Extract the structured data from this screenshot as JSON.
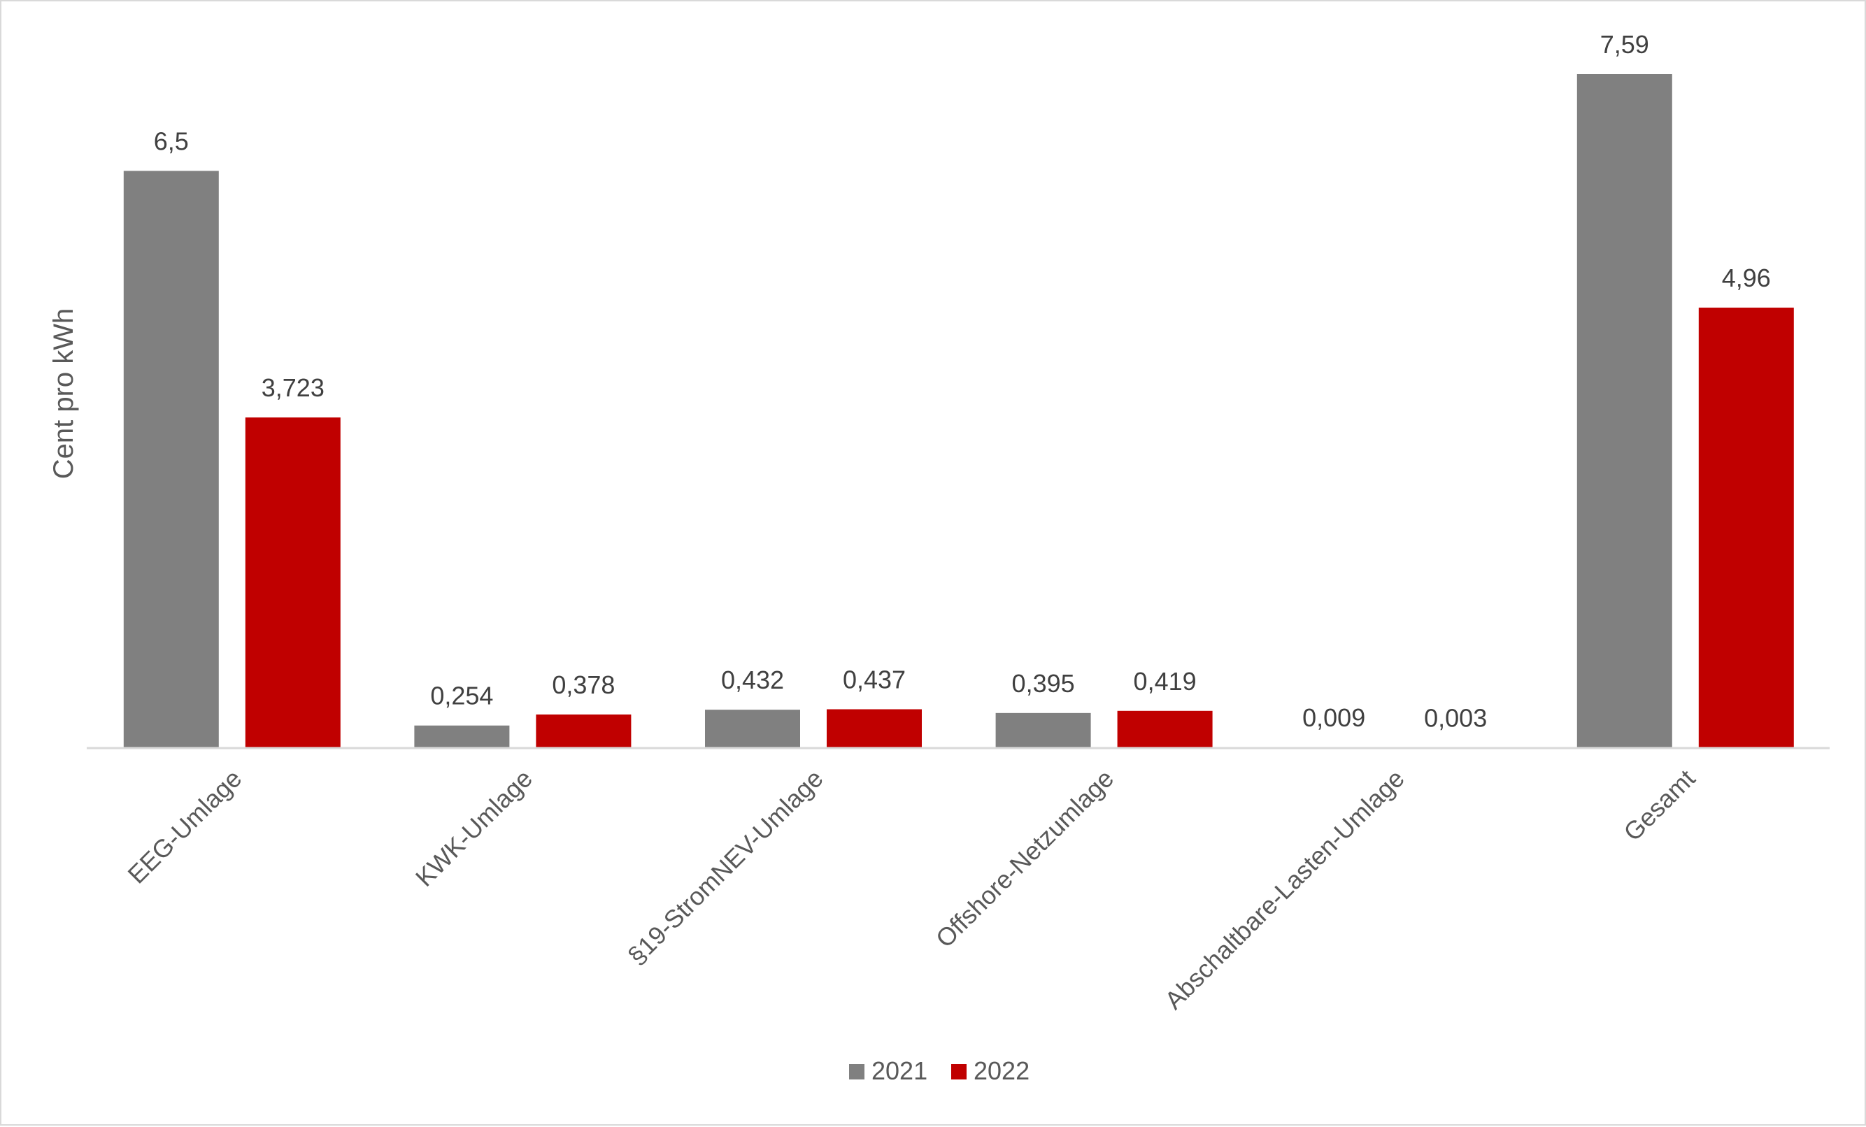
{
  "chart_data": {
    "type": "bar",
    "title": "",
    "xlabel": "",
    "ylabel": "Cent pro kWh",
    "categories": [
      "EEG-Umlage",
      "KWK-Umlage",
      "§19-StromNEV-Umlage",
      "Offshore-Netzumlage",
      "Abschaltbare-Lasten-Umlage",
      "Gesamt"
    ],
    "series": [
      {
        "name": "2021",
        "color": "#808080",
        "values": [
          6.5,
          0.254,
          0.432,
          0.395,
          0.009,
          7.59
        ],
        "labels": [
          "6,5",
          "0,254",
          "0,432",
          "0,395",
          "0,009",
          "7,59"
        ]
      },
      {
        "name": "2022",
        "color": "#c00000",
        "values": [
          3.723,
          0.378,
          0.437,
          0.419,
          0.003,
          4.96
        ],
        "labels": [
          "3,723",
          "0,378",
          "0,437",
          "0,419",
          "0,003",
          "4,96"
        ]
      }
    ],
    "ylim": [
      0,
      7.59
    ],
    "grid": false,
    "legend_position": "bottom-center",
    "axis_color": "#d9d9d9"
  }
}
